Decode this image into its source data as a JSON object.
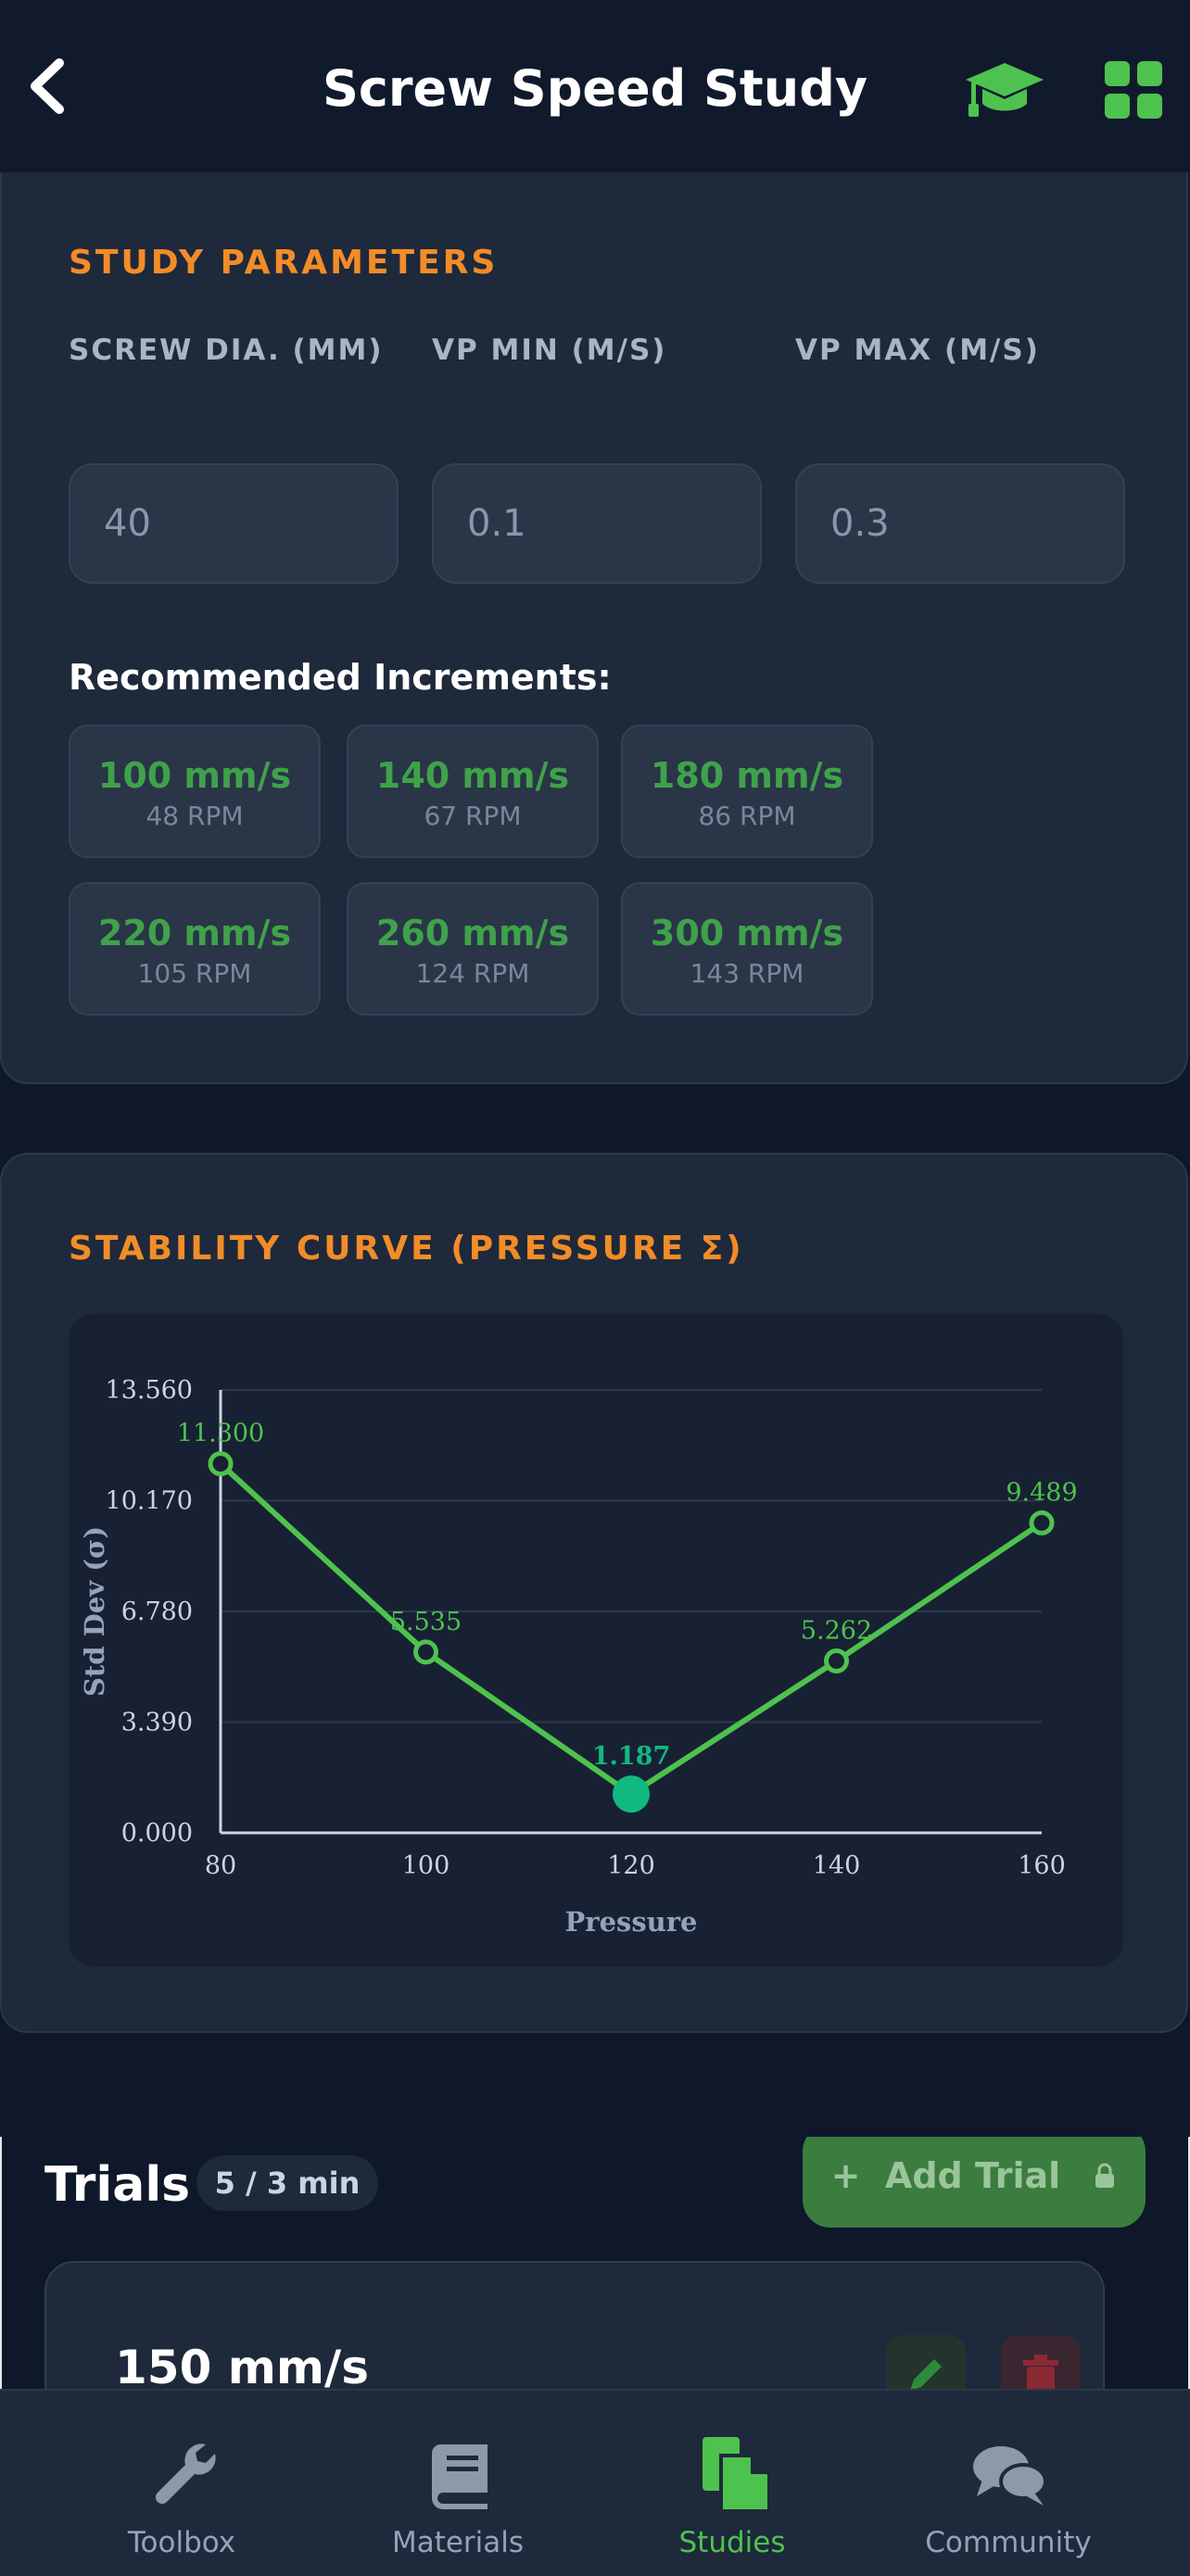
{
  "header": {
    "title": "Screw Speed Study",
    "back_icon": "chevron-left-icon",
    "hat_icon": "graduation-cap-icon",
    "grid_icon": "grid-icon"
  },
  "params": {
    "title": "STUDY PARAMETERS",
    "fields": [
      {
        "label": "SCREW DIA. (MM)",
        "value": "40"
      },
      {
        "label": "VP MIN (M/S)",
        "value": "0.1"
      },
      {
        "label": "VP MAX (M/S)",
        "value": "0.3"
      }
    ],
    "rec_title": "Recommended Increments:",
    "increments": [
      {
        "speed": "100 mm/s",
        "rpm": "48 RPM"
      },
      {
        "speed": "140 mm/s",
        "rpm": "67 RPM"
      },
      {
        "speed": "180 mm/s",
        "rpm": "86 RPM"
      },
      {
        "speed": "220 mm/s",
        "rpm": "105 RPM"
      },
      {
        "speed": "260 mm/s",
        "rpm": "124 RPM"
      },
      {
        "speed": "300 mm/s",
        "rpm": "143 RPM"
      }
    ]
  },
  "stability": {
    "title": "STABILITY CURVE (PRESSURE Σ)"
  },
  "chart_data": {
    "type": "line",
    "x": [
      80,
      100,
      120,
      140,
      160
    ],
    "y": [
      11.3,
      5.535,
      1.187,
      5.262,
      9.489
    ],
    "labels": [
      "11.300",
      "5.535",
      "1.187",
      "5.262",
      "9.489"
    ],
    "highlight_index": 2,
    "xlabel": "Pressure",
    "ylabel": "Std Dev (σ)",
    "yticks": [
      "0.000",
      "3.390",
      "6.780",
      "10.170",
      "13.560"
    ],
    "xticks": [
      "80",
      "100",
      "120",
      "140",
      "160"
    ],
    "ylim": [
      0,
      13.56
    ],
    "xlim": [
      80,
      160
    ],
    "grid": true,
    "line_color": "#4ec24e",
    "highlight_color": "#10b981"
  },
  "trials": {
    "title": "Trials",
    "badge": "5 / 3 min",
    "add_label": "Add Trial",
    "items": [
      {
        "speed": "150 mm/s"
      }
    ]
  },
  "nav": {
    "items": [
      {
        "label": "Toolbox",
        "icon": "wrench-icon"
      },
      {
        "label": "Materials",
        "icon": "book-icon"
      },
      {
        "label": "Studies",
        "icon": "document-icon",
        "active": true
      },
      {
        "label": "Community",
        "icon": "chat-bubbles-icon"
      }
    ]
  },
  "colors": {
    "accent": "#f28c28",
    "green": "#4ec24e",
    "bg": "#0f172a",
    "card": "#1e293b"
  }
}
